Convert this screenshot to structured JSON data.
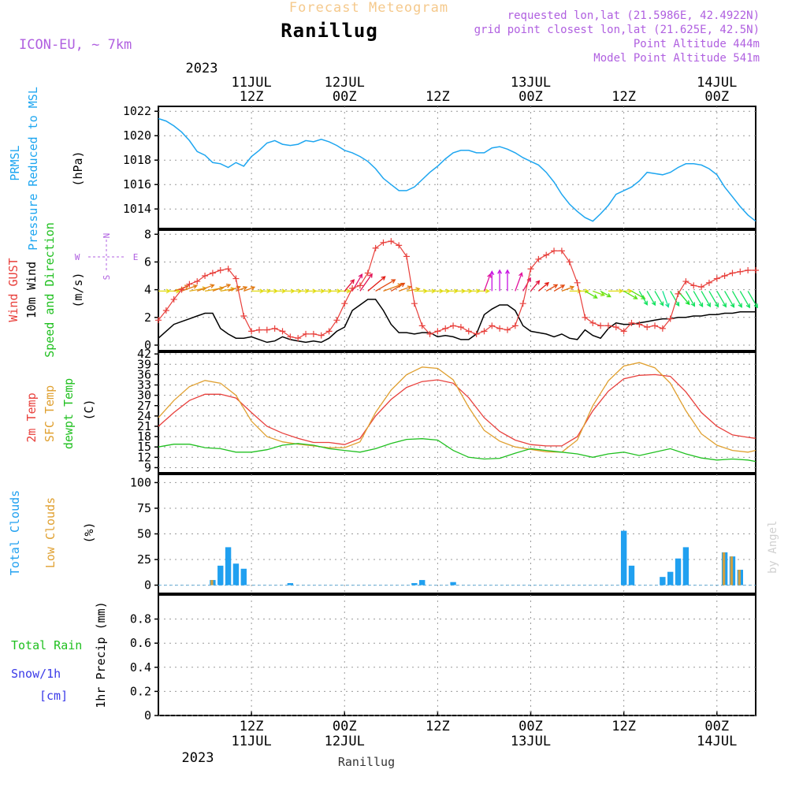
{
  "header": {
    "subtitle": "Forecast Meteogram",
    "title": "Ranillug",
    "model": "ICON-EU, ~ 7km",
    "requested": "requested lon,lat (21.5986E, 42.4922N)",
    "grid_point": "grid point closest lon,lat (21.625E, 42.5N)",
    "point_altitude": "Point Altitude 444m",
    "model_altitude": "Model Point Altitude 541m",
    "watermark": "by Angel",
    "footer_location": "Ranillug"
  },
  "time_axis": {
    "top_year": "2023",
    "bottom_year": "2023",
    "top_ticks": [
      {
        "hour": 12,
        "line1": "11JUL",
        "line2": "12Z"
      },
      {
        "hour": 24,
        "line1": "12JUL",
        "line2": "00Z"
      },
      {
        "hour": 36,
        "line1": "",
        "line2": "12Z"
      },
      {
        "hour": 48,
        "line1": "13JUL",
        "line2": "00Z"
      },
      {
        "hour": 60,
        "line1": "",
        "line2": "12Z"
      },
      {
        "hour": 72,
        "line1": "14JUL",
        "line2": "00Z"
      }
    ],
    "bottom_ticks": [
      {
        "hour": 12,
        "line1": "12Z",
        "line2": "11JUL"
      },
      {
        "hour": 24,
        "line1": "00Z",
        "line2": "12JUL"
      },
      {
        "hour": 36,
        "line1": "12Z",
        "line2": ""
      },
      {
        "hour": 48,
        "line1": "00Z",
        "line2": "13JUL"
      },
      {
        "hour": 60,
        "line1": "12Z",
        "line2": ""
      },
      {
        "hour": 72,
        "line1": "00Z",
        "line2": "14JUL"
      }
    ],
    "range_hours": [
      0,
      77
    ]
  },
  "colors": {
    "pressure": "#1ea6f0",
    "gust": "#e8403c",
    "wind": "#000000",
    "direction": "#20c020",
    "temp2m": "#e8403c",
    "sfc": "#e0a030",
    "dewpt": "#20c020",
    "total_clouds": "#20a0f0",
    "low_clouds": "#e0a030",
    "rain": "#20c020",
    "snow": "#3a3ae8",
    "purple": "#b060e0",
    "grid": "#999999"
  },
  "chart_data": [
    {
      "type": "line",
      "panel": "pressure",
      "labels": [
        "PRMSL",
        "Pressure Reduced to MSL"
      ],
      "unit": "(hPa)",
      "ylim": [
        1012.4,
        1022.4
      ],
      "yticks": [
        1014,
        1016,
        1018,
        1020,
        1022
      ],
      "series": [
        {
          "name": "PRMSL",
          "color": "#1ea6f0",
          "x": [
            0,
            1,
            2,
            3,
            4,
            5,
            6,
            7,
            8,
            9,
            10,
            11,
            12,
            13,
            14,
            15,
            16,
            17,
            18,
            19,
            20,
            21,
            22,
            23,
            24,
            25,
            26,
            27,
            28,
            29,
            30,
            31,
            32,
            33,
            34,
            35,
            36,
            37,
            38,
            39,
            40,
            41,
            42,
            43,
            44,
            45,
            46,
            47,
            48,
            49,
            50,
            51,
            52,
            53,
            54,
            55,
            56,
            57,
            58,
            59,
            60,
            61,
            62,
            63,
            64,
            65,
            66,
            67,
            68,
            69,
            70,
            71,
            72,
            73,
            74,
            75,
            76,
            77
          ],
          "y": [
            1021.4,
            1021.2,
            1020.8,
            1020.3,
            1019.6,
            1018.7,
            1018.4,
            1017.8,
            1017.7,
            1017.4,
            1017.8,
            1017.5,
            1018.3,
            1018.8,
            1019.4,
            1019.6,
            1019.3,
            1019.2,
            1019.3,
            1019.6,
            1019.5,
            1019.7,
            1019.5,
            1019.2,
            1018.8,
            1018.6,
            1018.3,
            1017.9,
            1017.3,
            1016.5,
            1016.0,
            1015.5,
            1015.5,
            1015.8,
            1016.4,
            1017.0,
            1017.5,
            1018.1,
            1018.6,
            1018.8,
            1018.8,
            1018.6,
            1018.6,
            1019.0,
            1019.1,
            1018.9,
            1018.6,
            1018.2,
            1017.9,
            1017.6,
            1017.0,
            1016.2,
            1015.2,
            1014.4,
            1013.8,
            1013.3,
            1013.0,
            1013.6,
            1014.3,
            1015.2,
            1015.5,
            1015.8,
            1016.3,
            1017.0,
            1016.9,
            1016.8,
            1017.0,
            1017.4,
            1017.7,
            1017.7,
            1017.6,
            1017.3,
            1016.8,
            1015.8,
            1015.0,
            1014.2,
            1013.5,
            1013.0
          ]
        }
      ]
    },
    {
      "type": "line",
      "panel": "wind",
      "labels": [
        "Wind GUST",
        "10m Wind",
        "Speed and Direction"
      ],
      "unit": "(m/s)",
      "compass": {
        "n": "N",
        "s": "S",
        "e": "E",
        "w": "W"
      },
      "ylim": [
        -0.4,
        8.3
      ],
      "yticks": [
        0,
        2,
        4,
        6,
        8
      ],
      "series": [
        {
          "name": "Wind GUST",
          "color": "#e8403c",
          "markers": "plus",
          "x": [
            0,
            1,
            2,
            3,
            4,
            5,
            6,
            7,
            8,
            9,
            10,
            11,
            12,
            13,
            14,
            15,
            16,
            17,
            18,
            19,
            20,
            21,
            22,
            23,
            24,
            25,
            26,
            27,
            28,
            29,
            30,
            31,
            32,
            33,
            34,
            35,
            36,
            37,
            38,
            39,
            40,
            41,
            42,
            43,
            44,
            45,
            46,
            47,
            48,
            49,
            50,
            51,
            52,
            53,
            54,
            55,
            56,
            57,
            58,
            59,
            60,
            61,
            62,
            63,
            64,
            65,
            66,
            67,
            68,
            69,
            70,
            71,
            72,
            73,
            74,
            75,
            76,
            77
          ],
          "y": [
            1.8,
            2.5,
            3.3,
            4.0,
            4.4,
            4.6,
            5.0,
            5.2,
            5.4,
            5.5,
            4.8,
            2.1,
            1.0,
            1.1,
            1.1,
            1.2,
            1.0,
            0.6,
            0.5,
            0.8,
            0.8,
            0.7,
            1.0,
            1.8,
            3.0,
            4.1,
            4.3,
            5.2,
            7.0,
            7.4,
            7.5,
            7.2,
            6.4,
            3.0,
            1.4,
            0.8,
            1.0,
            1.2,
            1.4,
            1.3,
            1.0,
            0.8,
            1.0,
            1.4,
            1.2,
            1.1,
            1.4,
            3.0,
            5.5,
            6.2,
            6.5,
            6.8,
            6.8,
            6.0,
            4.5,
            2.0,
            1.6,
            1.4,
            1.4,
            1.3,
            1.0,
            1.6,
            1.5,
            1.3,
            1.4,
            1.2,
            1.9,
            3.7,
            4.6,
            4.3,
            4.2,
            4.5,
            4.8,
            5.0,
            5.2,
            5.3,
            5.4,
            5.4
          ]
        },
        {
          "name": "10m Wind",
          "color": "#000000",
          "x": [
            0,
            1,
            2,
            3,
            4,
            5,
            6,
            7,
            8,
            9,
            10,
            11,
            12,
            13,
            14,
            15,
            16,
            17,
            18,
            19,
            20,
            21,
            22,
            23,
            24,
            25,
            26,
            27,
            28,
            29,
            30,
            31,
            32,
            33,
            34,
            35,
            36,
            37,
            38,
            39,
            40,
            41,
            42,
            43,
            44,
            45,
            46,
            47,
            48,
            49,
            50,
            51,
            52,
            53,
            54,
            55,
            56,
            57,
            58,
            59,
            60,
            61,
            62,
            63,
            64,
            65,
            66,
            67,
            68,
            69,
            70,
            71,
            72,
            73,
            74,
            75,
            76,
            77
          ],
          "y": [
            0.5,
            1.0,
            1.5,
            1.7,
            1.9,
            2.1,
            2.3,
            2.3,
            1.2,
            0.8,
            0.5,
            0.5,
            0.6,
            0.4,
            0.2,
            0.3,
            0.6,
            0.4,
            0.3,
            0.2,
            0.3,
            0.2,
            0.5,
            1.0,
            1.3,
            2.5,
            2.9,
            3.3,
            3.3,
            2.5,
            1.5,
            0.9,
            0.9,
            0.8,
            0.9,
            0.9,
            0.6,
            0.7,
            0.6,
            0.4,
            0.4,
            0.8,
            2.2,
            2.6,
            2.9,
            2.9,
            2.5,
            1.4,
            1.0,
            0.9,
            0.8,
            0.6,
            0.8,
            0.5,
            0.4,
            1.1,
            0.7,
            0.5,
            1.2,
            1.6,
            1.5,
            1.5,
            1.6,
            1.7,
            1.8,
            1.9,
            1.9,
            2.0,
            2.0,
            2.1,
            2.1,
            2.2,
            2.2,
            2.3,
            2.3,
            2.4,
            2.4,
            2.4
          ]
        }
      ],
      "arrows": {
        "hours": [
          0,
          1,
          2,
          3,
          4,
          5,
          6,
          7,
          8,
          9,
          10,
          11,
          12,
          13,
          14,
          15,
          16,
          17,
          18,
          19,
          20,
          21,
          22,
          23,
          24,
          25,
          26,
          27,
          28,
          29,
          30,
          31,
          32,
          33,
          34,
          35,
          36,
          37,
          38,
          39,
          40,
          41,
          42,
          43,
          44,
          45,
          46,
          47,
          48,
          49,
          50,
          51,
          52,
          53,
          54,
          55,
          56,
          57,
          58,
          59,
          60,
          61,
          62,
          63,
          64,
          65,
          66,
          67,
          68,
          69,
          70,
          71,
          72,
          73,
          74,
          75,
          76
        ],
        "direction_deg": [
          270,
          270,
          250,
          250,
          260,
          250,
          260,
          250,
          260,
          250,
          250,
          250,
          270,
          270,
          270,
          270,
          270,
          270,
          270,
          270,
          270,
          270,
          270,
          270,
          220,
          210,
          215,
          230,
          240,
          250,
          240,
          250,
          260,
          270,
          270,
          270,
          270,
          270,
          270,
          270,
          270,
          270,
          200,
          180,
          180,
          180,
          200,
          210,
          220,
          230,
          240,
          240,
          250,
          270,
          270,
          300,
          290,
          300,
          270,
          270,
          300,
          300,
          330,
          330,
          330,
          340,
          330,
          320,
          330,
          330,
          330,
          330,
          330,
          330,
          330,
          330,
          330
        ]
      }
    },
    {
      "type": "line",
      "panel": "temperature",
      "labels": [
        "2m Temp",
        "SFC Temp",
        "dewpt Temp"
      ],
      "unit": "(C)",
      "ylim": [
        7.5,
        42.5
      ],
      "yticks": [
        9,
        12,
        15,
        18,
        21,
        24,
        27,
        30,
        33,
        36,
        39,
        42
      ],
      "series": [
        {
          "name": "2m Temp",
          "color": "#e8403c",
          "x": [
            0,
            2,
            4,
            6,
            8,
            10,
            12,
            14,
            16,
            18,
            20,
            22,
            24,
            26,
            28,
            30,
            32,
            34,
            36,
            38,
            40,
            42,
            44,
            46,
            48,
            50,
            52,
            54,
            56,
            58,
            60,
            62,
            64,
            66,
            68,
            70,
            72,
            74,
            76,
            77
          ],
          "y": [
            21,
            25,
            28.5,
            30.3,
            30.3,
            29.2,
            25,
            21,
            19,
            17.5,
            16.3,
            16.3,
            15.7,
            17.5,
            24,
            28.8,
            32.3,
            34,
            34.5,
            33.5,
            29.3,
            23.5,
            19.5,
            17,
            15.7,
            15.3,
            15.3,
            18,
            25.5,
            31.2,
            34.8,
            35.8,
            36,
            35.5,
            31,
            25,
            21,
            18.5,
            17.8,
            17.5
          ]
        },
        {
          "name": "SFC Temp",
          "color": "#e0a030",
          "x": [
            0,
            2,
            4,
            6,
            8,
            10,
            12,
            14,
            16,
            18,
            20,
            22,
            24,
            26,
            28,
            30,
            32,
            34,
            36,
            38,
            40,
            42,
            44,
            46,
            48,
            50,
            52,
            54,
            56,
            58,
            60,
            62,
            64,
            66,
            68,
            70,
            72,
            74,
            76,
            77
          ],
          "y": [
            23.5,
            28.5,
            32.5,
            34.3,
            33.5,
            30,
            22.5,
            18,
            16.5,
            15.8,
            15.3,
            14.8,
            14.8,
            16.5,
            25,
            31.5,
            36,
            38.2,
            37.8,
            34.5,
            26.5,
            19.8,
            16.7,
            15,
            14.3,
            13.6,
            13.5,
            17,
            27,
            34.2,
            38.5,
            39.5,
            38,
            33.5,
            25.5,
            18.8,
            15.5,
            14,
            13.5,
            14
          ]
        },
        {
          "name": "dewpt Temp",
          "color": "#20c020",
          "x": [
            0,
            2,
            4,
            6,
            8,
            10,
            12,
            14,
            16,
            18,
            20,
            22,
            24,
            26,
            28,
            30,
            32,
            34,
            36,
            38,
            40,
            42,
            44,
            46,
            48,
            50,
            52,
            54,
            56,
            58,
            60,
            62,
            64,
            66,
            68,
            70,
            72,
            74,
            76,
            77
          ],
          "y": [
            15,
            15.8,
            15.8,
            14.8,
            14.5,
            13.5,
            13.5,
            14.2,
            15.5,
            16,
            15.5,
            14.5,
            14,
            13.5,
            14.5,
            16,
            17.2,
            17.4,
            17,
            14,
            12,
            11.5,
            11.7,
            13.2,
            14.5,
            14,
            13.5,
            13,
            12,
            13,
            13.5,
            12.5,
            13.5,
            14.5,
            13,
            11.8,
            11.2,
            11.5,
            11.2,
            10.8
          ]
        }
      ]
    },
    {
      "type": "bar",
      "panel": "clouds",
      "labels": [
        "Total Clouds",
        "Low Clouds"
      ],
      "unit": "(%)",
      "ylim": [
        -8,
        108
      ],
      "yticks": [
        0,
        25,
        50,
        75,
        100
      ],
      "series": [
        {
          "name": "Total Clouds",
          "color": "#20a0f0",
          "x": [
            7,
            8,
            9,
            10,
            11,
            17,
            33,
            34,
            38,
            60,
            61,
            65,
            66,
            67,
            68,
            73,
            74,
            75
          ],
          "y": [
            5,
            19,
            37,
            21,
            16,
            2,
            2,
            5,
            3,
            53,
            19,
            8,
            13,
            26,
            37,
            32,
            28,
            15
          ]
        },
        {
          "name": "Low Clouds",
          "color": "#e0a030",
          "x": [
            7,
            73,
            74,
            75
          ],
          "y": [
            5,
            32,
            28,
            15
          ]
        }
      ]
    },
    {
      "type": "bar",
      "panel": "precipitation",
      "labels": [
        "Total Rain",
        "Snow/1h",
        "[cm]"
      ],
      "unit": "1hr Precip (mm)",
      "ylim": [
        0,
        1.0
      ],
      "yticks": [
        0,
        0.2,
        0.4,
        0.6,
        0.8
      ],
      "series": [
        {
          "name": "Total Rain",
          "color": "#20c020",
          "x": [],
          "y": []
        }
      ]
    }
  ]
}
